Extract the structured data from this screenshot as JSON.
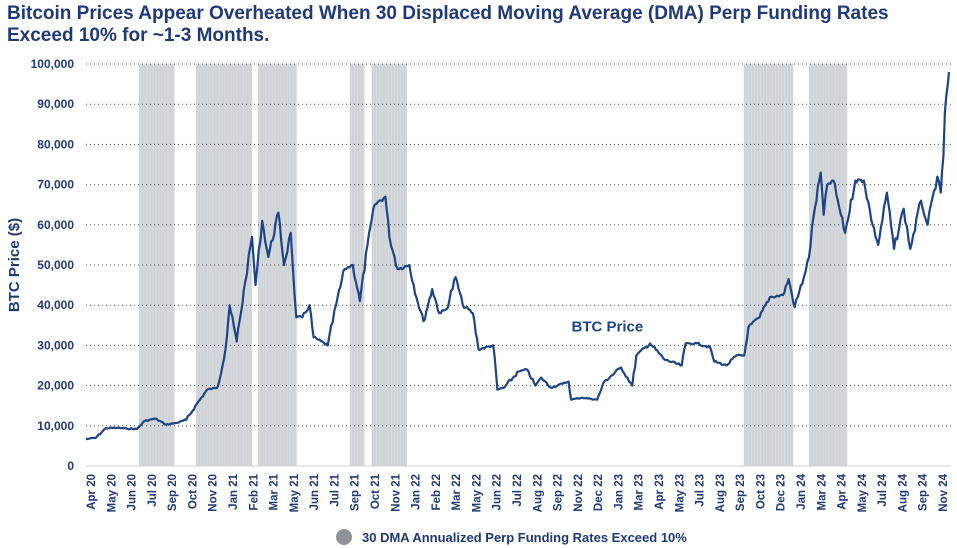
{
  "title": "Bitcoin Prices Appear Overheated When 30 Displaced Moving Average (DMA) Perp Funding Rates Exceed 10% for ~1-3 Months.",
  "colors": {
    "line": "#1c4587",
    "shade": "#cfd2d6",
    "legend_swatch": "#8f9399",
    "text": "#1e3a78",
    "grid": "#555555"
  },
  "chart_data": {
    "type": "line",
    "title": "",
    "xlabel": "",
    "ylabel": "BTC Price ($)",
    "ylim": [
      0,
      100000
    ],
    "grid": true,
    "yticks": [
      0,
      10000,
      20000,
      30000,
      40000,
      50000,
      60000,
      70000,
      80000,
      90000,
      100000
    ],
    "ytick_labels": [
      "0",
      "10,000",
      "20,000",
      "30,000",
      "40,000",
      "50,000",
      "60,000",
      "70,000",
      "80,000",
      "90,000",
      "100,000"
    ],
    "x_tick_labels": [
      "Apr 20",
      "May 20",
      "Jun 20",
      "Jul 20",
      "Sep 20",
      "Oct 20",
      "Nov 20",
      "Jan 21",
      "Feb 21",
      "Mar 21",
      "May 21",
      "Jun 21",
      "Jul 21",
      "Sep 21",
      "Oct 21",
      "Nov 21",
      "Jan 22",
      "Feb 22",
      "Mar 22",
      "May 22",
      "Jun 22",
      "Jul 22",
      "Aug 22",
      "Sep 22",
      "Nov 22",
      "Dec 22",
      "Jan 23",
      "Mar 23",
      "Apr 23",
      "May 23",
      "Jul 23",
      "Aug 23",
      "Sep 23",
      "Oct 23",
      "Dec 23",
      "Jan 24",
      "Mar 24",
      "Apr 24",
      "May 24",
      "Jul 24",
      "Aug 24",
      "Sep 24",
      "Nov 24"
    ],
    "x_range": [
      "2020-04-01",
      "2024-11-25"
    ],
    "series": [
      {
        "name": "BTC Price",
        "points": [
          [
            "2020-04-01",
            6700
          ],
          [
            "2020-04-20",
            7000
          ],
          [
            "2020-05-10",
            9400
          ],
          [
            "2020-06-01",
            9500
          ],
          [
            "2020-06-20",
            9300
          ],
          [
            "2020-07-10",
            9200
          ],
          [
            "2020-07-25",
            11200
          ],
          [
            "2020-08-15",
            11800
          ],
          [
            "2020-09-05",
            10300
          ],
          [
            "2020-09-25",
            10700
          ],
          [
            "2020-10-15",
            11500
          ],
          [
            "2020-11-05",
            15500
          ],
          [
            "2020-11-25",
            19000
          ],
          [
            "2020-12-15",
            19500
          ],
          [
            "2020-12-31",
            29000
          ],
          [
            "2021-01-08",
            40000
          ],
          [
            "2021-01-22",
            31000
          ],
          [
            "2021-02-08",
            46000
          ],
          [
            "2021-02-21",
            57000
          ],
          [
            "2021-02-28",
            45000
          ],
          [
            "2021-03-13",
            61000
          ],
          [
            "2021-03-25",
            52000
          ],
          [
            "2021-04-14",
            63000
          ],
          [
            "2021-04-25",
            50000
          ],
          [
            "2021-05-08",
            58000
          ],
          [
            "2021-05-12",
            50000
          ],
          [
            "2021-05-19",
            37000
          ],
          [
            "2021-05-31",
            37000
          ],
          [
            "2021-06-14",
            40000
          ],
          [
            "2021-06-22",
            32000
          ],
          [
            "2021-07-20",
            30000
          ],
          [
            "2021-08-05",
            40000
          ],
          [
            "2021-08-22",
            49000
          ],
          [
            "2021-09-07",
            50000
          ],
          [
            "2021-09-21",
            41000
          ],
          [
            "2021-10-06",
            55000
          ],
          [
            "2021-10-20",
            65000
          ],
          [
            "2021-11-10",
            67000
          ],
          [
            "2021-11-18",
            57000
          ],
          [
            "2021-12-04",
            49000
          ],
          [
            "2021-12-27",
            50000
          ],
          [
            "2022-01-10",
            42000
          ],
          [
            "2022-01-24",
            36000
          ],
          [
            "2022-02-10",
            44000
          ],
          [
            "2022-02-24",
            38000
          ],
          [
            "2022-03-10",
            39000
          ],
          [
            "2022-03-28",
            47000
          ],
          [
            "2022-04-11",
            40000
          ],
          [
            "2022-05-01",
            38000
          ],
          [
            "2022-05-12",
            29000
          ],
          [
            "2022-06-10",
            30000
          ],
          [
            "2022-06-18",
            19000
          ],
          [
            "2022-07-01",
            19500
          ],
          [
            "2022-07-30",
            23500
          ],
          [
            "2022-08-15",
            24000
          ],
          [
            "2022-09-01",
            20000
          ],
          [
            "2022-09-12",
            22000
          ],
          [
            "2022-10-01",
            19500
          ],
          [
            "2022-10-25",
            20500
          ],
          [
            "2022-11-05",
            21000
          ],
          [
            "2022-11-10",
            16500
          ],
          [
            "2022-12-01",
            17000
          ],
          [
            "2022-12-31",
            16500
          ],
          [
            "2023-01-14",
            21000
          ],
          [
            "2023-02-16",
            24500
          ],
          [
            "2023-03-10",
            20000
          ],
          [
            "2023-03-18",
            27500
          ],
          [
            "2023-04-14",
            30500
          ],
          [
            "2023-05-12",
            26500
          ],
          [
            "2023-06-15",
            25000
          ],
          [
            "2023-06-23",
            30500
          ],
          [
            "2023-07-15",
            30500
          ],
          [
            "2023-08-10",
            29500
          ],
          [
            "2023-08-18",
            26000
          ],
          [
            "2023-09-11",
            25000
          ],
          [
            "2023-10-01",
            27500
          ],
          [
            "2023-10-16",
            27500
          ],
          [
            "2023-10-24",
            34500
          ],
          [
            "2023-11-15",
            37000
          ],
          [
            "2023-12-05",
            42000
          ],
          [
            "2023-12-31",
            42500
          ],
          [
            "2024-01-11",
            46500
          ],
          [
            "2024-01-23",
            39500
          ],
          [
            "2024-02-10",
            47000
          ],
          [
            "2024-02-20",
            52000
          ],
          [
            "2024-02-29",
            62000
          ],
          [
            "2024-03-14",
            73000
          ],
          [
            "2024-03-20",
            62500
          ],
          [
            "2024-03-27",
            70000
          ],
          [
            "2024-04-08",
            71000
          ],
          [
            "2024-04-20",
            64000
          ],
          [
            "2024-05-01",
            58000
          ],
          [
            "2024-05-21",
            71000
          ],
          [
            "2024-06-07",
            71000
          ],
          [
            "2024-06-24",
            60000
          ],
          [
            "2024-07-05",
            55000
          ],
          [
            "2024-07-22",
            68000
          ],
          [
            "2024-08-05",
            54000
          ],
          [
            "2024-08-24",
            64000
          ],
          [
            "2024-09-06",
            54000
          ],
          [
            "2024-09-27",
            66000
          ],
          [
            "2024-10-10",
            60000
          ],
          [
            "2024-10-29",
            72000
          ],
          [
            "2024-11-05",
            68000
          ],
          [
            "2024-11-10",
            77000
          ],
          [
            "2024-11-13",
            88000
          ],
          [
            "2024-11-21",
            98000
          ]
        ]
      }
    ],
    "annotations": [
      {
        "text": "BTC Price",
        "x": "2023-01-20",
        "y": 33500
      }
    ],
    "shaded_periods": [
      [
        "2020-07-14",
        "2020-09-22"
      ],
      [
        "2020-11-03",
        "2021-02-21"
      ],
      [
        "2021-03-05",
        "2021-05-20"
      ],
      [
        "2021-09-01",
        "2021-09-30"
      ],
      [
        "2021-10-14",
        "2021-12-22"
      ],
      [
        "2023-10-15",
        "2024-01-20"
      ],
      [
        "2024-02-20",
        "2024-05-05"
      ]
    ],
    "legend": {
      "position": "bottom",
      "items": [
        {
          "label": "30 DMA Annualized Perp Funding Rates Exceed 10%",
          "kind": "shaded-period",
          "color": "#8f9399"
        }
      ]
    }
  }
}
